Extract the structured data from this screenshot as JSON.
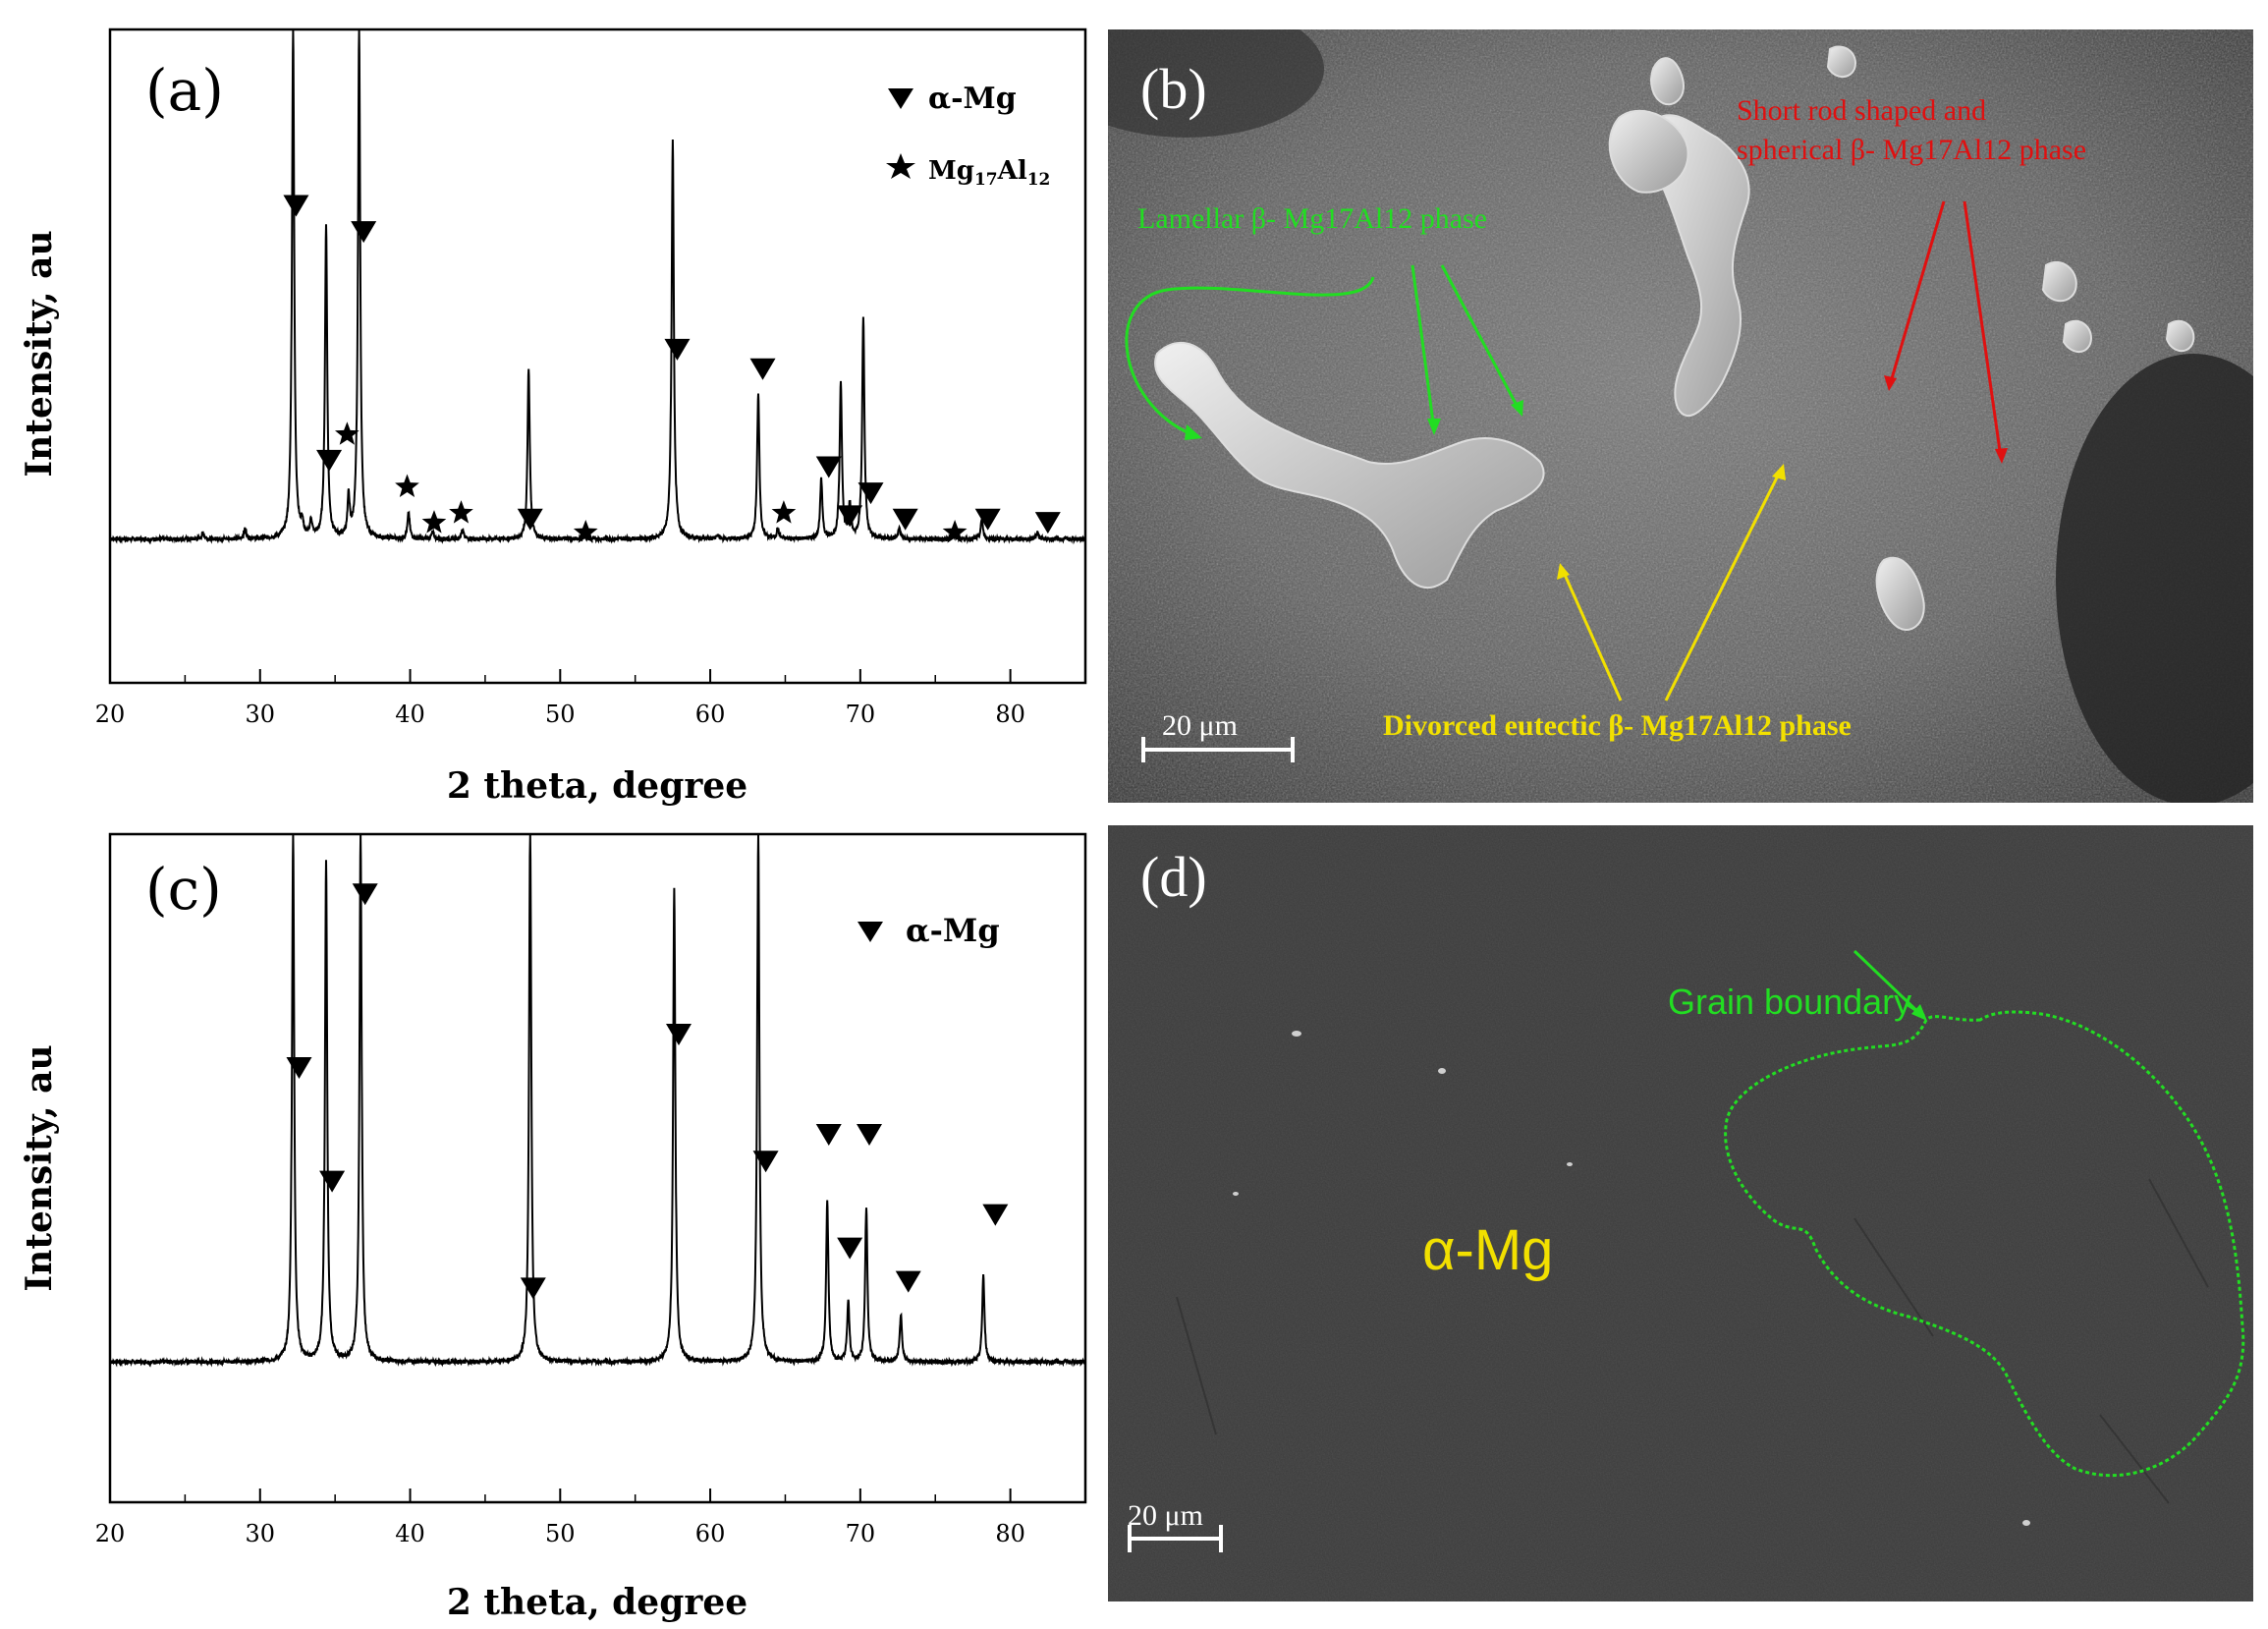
{
  "figure": {
    "panel_a": {
      "label": "(a)",
      "ylabel": "Intensity, au",
      "xlabel": "2 theta, degree",
      "legend": [
        {
          "symbol": "triangle",
          "text": "α-Mg"
        },
        {
          "symbol": "star",
          "text": "Mg17Al12",
          "main": "Mg",
          "sub1": "17",
          "mid": "Al",
          "sub2": "12"
        }
      ]
    },
    "panel_b": {
      "label": "(b)",
      "scalebar": "20 μm",
      "annotations": {
        "lamellar": "Lamellar  β- Mg17Al12 phase",
        "short_rod_1": "Short rod shaped and",
        "short_rod_2": "spherical  β- Mg17Al12 phase",
        "divorced": "Divorced eutectic  β- Mg17Al12 phase"
      },
      "colors": {
        "green": "#22dd22",
        "red": "#e01010",
        "yellow": "#f2e000"
      }
    },
    "panel_c": {
      "label": "(c)",
      "ylabel": "Intensity, au",
      "xlabel": "2 theta, degree",
      "legend": [
        {
          "symbol": "triangle",
          "text": "α-Mg"
        }
      ]
    },
    "panel_d": {
      "label": "(d)",
      "scalebar": "20 μm",
      "phase_label": "α-Mg",
      "grain_label": "Grain boundary",
      "colors": {
        "green": "#22dd22",
        "yellow": "#f2e000"
      }
    }
  },
  "chart_data": [
    {
      "panel": "(a)",
      "type": "line",
      "xlabel": "2 theta, degree",
      "ylabel": "Intensity, au",
      "xlim": [
        20,
        85
      ],
      "ylim": [
        0,
        100
      ],
      "xticks": [
        20,
        30,
        40,
        50,
        60,
        70,
        80
      ],
      "grid": false,
      "legend_position": "top-right",
      "baseline": 22,
      "peaks": [
        {
          "x": 26.2,
          "y": 23
        },
        {
          "x": 29.0,
          "y": 23.5
        },
        {
          "x": 32.2,
          "y": 100
        },
        {
          "x": 32.8,
          "y": 24
        },
        {
          "x": 33.4,
          "y": 24.5
        },
        {
          "x": 34.4,
          "y": 70
        },
        {
          "x": 35.9,
          "y": 28
        },
        {
          "x": 36.6,
          "y": 100
        },
        {
          "x": 39.9,
          "y": 26
        },
        {
          "x": 41.5,
          "y": 23
        },
        {
          "x": 43.5,
          "y": 23.5
        },
        {
          "x": 47.9,
          "y": 48
        },
        {
          "x": 51.6,
          "y": 22.5
        },
        {
          "x": 57.5,
          "y": 83
        },
        {
          "x": 60.5,
          "y": 22.5
        },
        {
          "x": 63.2,
          "y": 44
        },
        {
          "x": 64.5,
          "y": 23.5
        },
        {
          "x": 67.4,
          "y": 31
        },
        {
          "x": 68.7,
          "y": 46
        },
        {
          "x": 69.3,
          "y": 27
        },
        {
          "x": 70.2,
          "y": 56
        },
        {
          "x": 72.6,
          "y": 23.5
        },
        {
          "x": 76.2,
          "y": 23
        },
        {
          "x": 78.1,
          "y": 25
        },
        {
          "x": 81.8,
          "y": 23
        }
      ],
      "markers": [
        {
          "x": 32.4,
          "y": 73,
          "symbol": "triangle",
          "phase": "α-Mg"
        },
        {
          "x": 34.6,
          "y": 34,
          "symbol": "triangle",
          "phase": "α-Mg"
        },
        {
          "x": 36.9,
          "y": 69,
          "symbol": "triangle",
          "phase": "α-Mg"
        },
        {
          "x": 35.8,
          "y": 38,
          "symbol": "star",
          "phase": "Mg17Al12"
        },
        {
          "x": 39.8,
          "y": 30,
          "symbol": "star",
          "phase": "Mg17Al12"
        },
        {
          "x": 41.6,
          "y": 24.5,
          "symbol": "star",
          "phase": "Mg17Al12"
        },
        {
          "x": 43.4,
          "y": 26,
          "symbol": "star",
          "phase": "Mg17Al12"
        },
        {
          "x": 48.0,
          "y": 25,
          "symbol": "triangle",
          "phase": "α-Mg"
        },
        {
          "x": 51.7,
          "y": 23,
          "symbol": "star",
          "phase": "Mg17Al12"
        },
        {
          "x": 57.8,
          "y": 51,
          "symbol": "triangle",
          "phase": "α-Mg"
        },
        {
          "x": 63.5,
          "y": 48,
          "symbol": "triangle",
          "phase": "α-Mg"
        },
        {
          "x": 64.9,
          "y": 26,
          "symbol": "star",
          "phase": "Mg17Al12"
        },
        {
          "x": 67.9,
          "y": 33,
          "symbol": "triangle",
          "phase": "α-Mg"
        },
        {
          "x": 69.3,
          "y": 25.5,
          "symbol": "triangle",
          "phase": "α-Mg"
        },
        {
          "x": 70.7,
          "y": 29,
          "symbol": "triangle",
          "phase": "α-Mg"
        },
        {
          "x": 73.0,
          "y": 25,
          "symbol": "triangle",
          "phase": "α-Mg"
        },
        {
          "x": 76.3,
          "y": 23,
          "symbol": "star",
          "phase": "Mg17Al12"
        },
        {
          "x": 78.5,
          "y": 25,
          "symbol": "triangle",
          "phase": "α-Mg"
        },
        {
          "x": 82.5,
          "y": 24.5,
          "symbol": "triangle",
          "phase": "α-Mg"
        }
      ]
    },
    {
      "panel": "(c)",
      "type": "line",
      "xlabel": "2 theta, degree",
      "ylabel": "Intensity, au",
      "xlim": [
        20,
        85
      ],
      "ylim": [
        0,
        100
      ],
      "xticks": [
        20,
        30,
        40,
        50,
        60,
        70,
        80
      ],
      "grid": false,
      "legend_position": "top-right",
      "baseline": 21,
      "peaks": [
        {
          "x": 32.2,
          "y": 100
        },
        {
          "x": 34.4,
          "y": 96
        },
        {
          "x": 36.7,
          "y": 100
        },
        {
          "x": 48.0,
          "y": 100
        },
        {
          "x": 57.6,
          "y": 92
        },
        {
          "x": 63.2,
          "y": 100
        },
        {
          "x": 67.8,
          "y": 45
        },
        {
          "x": 69.2,
          "y": 30
        },
        {
          "x": 70.4,
          "y": 44
        },
        {
          "x": 72.7,
          "y": 28
        },
        {
          "x": 78.2,
          "y": 34
        }
      ],
      "markers": [
        {
          "x": 32.6,
          "y": 65,
          "symbol": "triangle",
          "phase": "α-Mg"
        },
        {
          "x": 34.8,
          "y": 48,
          "symbol": "triangle",
          "phase": "α-Mg"
        },
        {
          "x": 37.0,
          "y": 91,
          "symbol": "triangle",
          "phase": "α-Mg"
        },
        {
          "x": 48.2,
          "y": 32,
          "symbol": "triangle",
          "phase": "α-Mg"
        },
        {
          "x": 57.9,
          "y": 70,
          "symbol": "triangle",
          "phase": "α-Mg"
        },
        {
          "x": 63.7,
          "y": 51,
          "symbol": "triangle",
          "phase": "α-Mg"
        },
        {
          "x": 67.9,
          "y": 55,
          "symbol": "triangle",
          "phase": "α-Mg"
        },
        {
          "x": 69.3,
          "y": 38,
          "symbol": "triangle",
          "phase": "α-Mg"
        },
        {
          "x": 70.6,
          "y": 55,
          "symbol": "triangle",
          "phase": "α-Mg"
        },
        {
          "x": 73.2,
          "y": 33,
          "symbol": "triangle",
          "phase": "α-Mg"
        },
        {
          "x": 79.0,
          "y": 43,
          "symbol": "triangle",
          "phase": "α-Mg"
        }
      ]
    }
  ]
}
